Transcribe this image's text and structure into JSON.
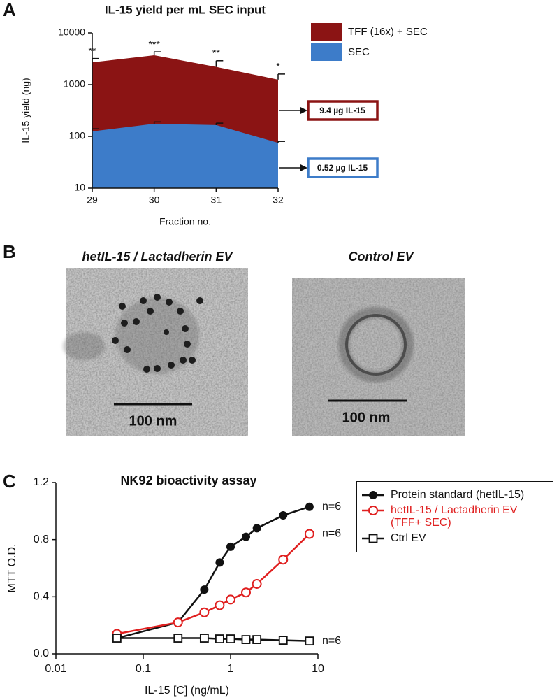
{
  "panel_labels": [
    "A",
    "B",
    "C"
  ],
  "chart_data": [
    {
      "type": "area",
      "title": "IL-15 yield per mL SEC input",
      "x_label": "Fraction no.",
      "y_label": "IL-15 yield (ng)",
      "x": [
        29,
        30,
        31,
        32
      ],
      "xlim": [
        29,
        32
      ],
      "xticks": [
        29,
        30,
        31,
        32
      ],
      "ylim": [
        10,
        10000
      ],
      "yticks": [
        10,
        100,
        1000,
        10000
      ],
      "y_scale": "log",
      "legend": "top-right",
      "series": [
        {
          "name": "TFF (16x) + SEC",
          "color": "#8b1414",
          "values": [
            2700,
            3700,
            2200,
            1250
          ],
          "errors": [
            500,
            600,
            700,
            350
          ],
          "callout": "9.4 µg IL-15"
        },
        {
          "name": "SEC",
          "color": "#3d7cc9",
          "values": [
            125,
            175,
            165,
            75
          ],
          "errors": [
            15,
            15,
            15,
            5
          ],
          "callout": "0.52 µg IL-15"
        }
      ],
      "annotations": [
        "**",
        "***",
        "**",
        "*"
      ]
    },
    {
      "type": "line",
      "title": "NK92 bioactivity assay",
      "x_label": "IL-15 [C] (ng/mL)",
      "y_label": "MTT O.D.",
      "x": [
        0.05,
        0.25,
        0.5,
        0.75,
        1,
        1.5,
        2,
        4,
        8
      ],
      "xlim": [
        0.01,
        10
      ],
      "xticks": [
        0.01,
        0.1,
        1,
        10
      ],
      "x_scale": "log",
      "ylim": [
        0,
        1.2
      ],
      "yticks": [
        {
          "value": 0,
          "label": "0.0"
        },
        0.4,
        0.8,
        1.2
      ],
      "legend": "right",
      "series": [
        {
          "name": "Protein standard (hetIL-15)",
          "color": "#111111",
          "marker": "filled-circle",
          "values": [
            0.11,
            0.22,
            0.45,
            0.64,
            0.75,
            0.82,
            0.88,
            0.97,
            1.03
          ],
          "end_label": "n=6"
        },
        {
          "name": "hetIL-15 / Lactadherin EV (TFF+ SEC)",
          "color": "#e02020",
          "marker": "open-circle",
          "values": [
            0.14,
            0.22,
            0.29,
            0.34,
            0.38,
            0.43,
            0.49,
            0.66,
            0.84
          ],
          "end_label": "n=6"
        },
        {
          "name": "Ctrl EV",
          "color": "#111111",
          "marker": "open-square",
          "values": [
            0.11,
            0.11,
            0.11,
            0.105,
            0.105,
            0.1,
            0.1,
            0.095,
            0.09
          ],
          "end_label": "n=6"
        }
      ]
    }
  ],
  "micrographs": [
    {
      "title": "hetIL-15 / Lactadherin EV",
      "scale_bar": "100 nm"
    },
    {
      "title": "Control EV",
      "scale_bar": "100 nm"
    }
  ]
}
